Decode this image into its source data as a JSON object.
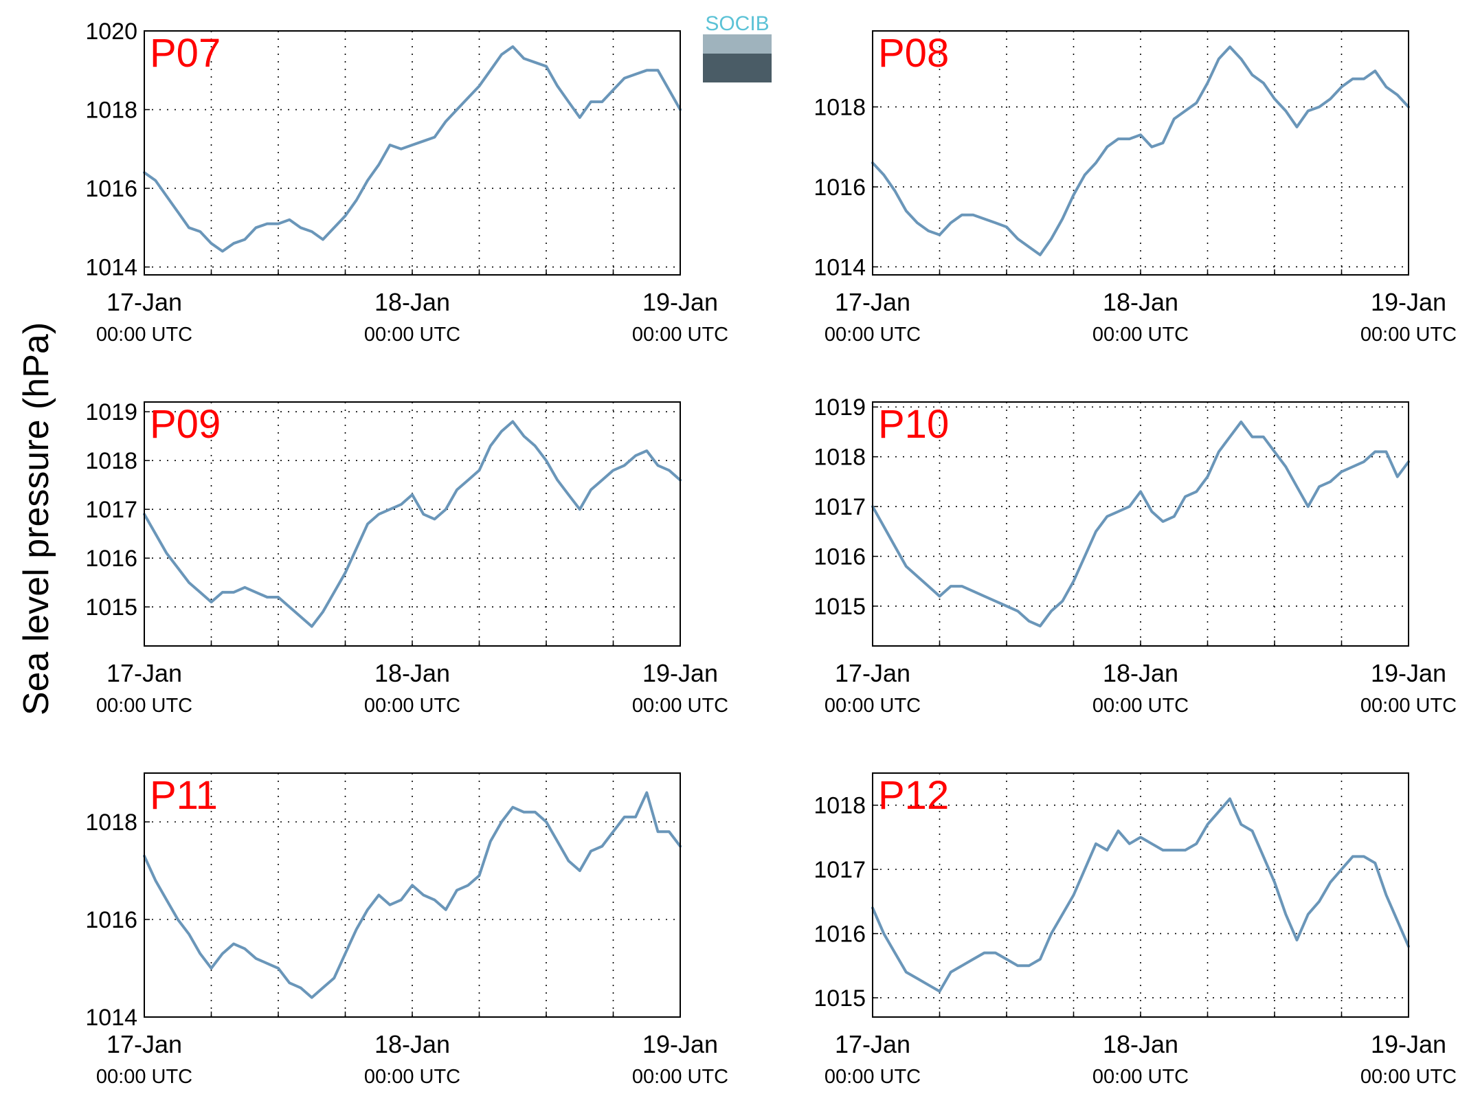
{
  "figure": {
    "ylabel": "Sea level pressure (hPa)",
    "logo_text": "SOCIB",
    "line_color": "#6a96b9",
    "label_color": "#ff0000"
  },
  "chart_data": [
    {
      "type": "line",
      "title": "P07",
      "xticks": [
        {
          "x": 0,
          "line1": "17-Jan",
          "line2": "00:00 UTC"
        },
        {
          "x": 24,
          "line1": "18-Jan",
          "line2": "00:00 UTC"
        },
        {
          "x": 48,
          "line1": "19-Jan",
          "line2": "00:00 UTC"
        }
      ],
      "xlim": [
        0,
        48
      ],
      "ylim": [
        1013.8,
        1020.0
      ],
      "yticks": [
        1014,
        1016,
        1018,
        1020
      ],
      "grid": true,
      "series": [
        {
          "x": [
            0,
            1,
            2,
            3,
            4,
            5,
            6,
            7,
            8,
            9,
            10,
            11,
            12,
            13,
            14,
            15,
            16,
            17,
            18,
            19,
            20,
            21,
            22,
            23,
            24,
            25,
            26,
            27,
            28,
            29,
            30,
            31,
            32,
            33,
            34,
            35,
            36,
            37,
            38,
            39,
            40,
            41,
            42,
            43,
            44,
            45,
            46,
            47,
            48
          ],
          "y": [
            1016.4,
            1016.2,
            1015.8,
            1015.4,
            1015.0,
            1014.9,
            1014.6,
            1014.4,
            1014.6,
            1014.7,
            1015.0,
            1015.1,
            1015.1,
            1015.2,
            1015.0,
            1014.9,
            1014.7,
            1015.0,
            1015.3,
            1015.7,
            1016.2,
            1016.6,
            1017.1,
            1017.0,
            1017.1,
            1017.2,
            1017.3,
            1017.7,
            1018.0,
            1018.3,
            1018.6,
            1019.0,
            1019.4,
            1019.6,
            1019.3,
            1019.2,
            1019.1,
            1018.6,
            1018.2,
            1017.8,
            1018.2,
            1018.2,
            1018.5,
            1018.8,
            1018.9,
            1019.0,
            1019.0,
            1018.5,
            1018.0
          ]
        }
      ]
    },
    {
      "type": "line",
      "title": "P08",
      "xticks": [
        {
          "x": 0,
          "line1": "17-Jan",
          "line2": "00:00 UTC"
        },
        {
          "x": 24,
          "line1": "18-Jan",
          "line2": "00:00 UTC"
        },
        {
          "x": 48,
          "line1": "19-Jan",
          "line2": "00:00 UTC"
        }
      ],
      "xlim": [
        0,
        48
      ],
      "ylim": [
        1013.8,
        1019.9
      ],
      "yticks": [
        1014,
        1016,
        1018
      ],
      "grid": true,
      "series": [
        {
          "x": [
            0,
            1,
            2,
            3,
            4,
            5,
            6,
            7,
            8,
            9,
            10,
            11,
            12,
            13,
            14,
            15,
            16,
            17,
            18,
            19,
            20,
            21,
            22,
            23,
            24,
            25,
            26,
            27,
            28,
            29,
            30,
            31,
            32,
            33,
            34,
            35,
            36,
            37,
            38,
            39,
            40,
            41,
            42,
            43,
            44,
            45,
            46,
            47,
            48
          ],
          "y": [
            1016.6,
            1016.3,
            1015.9,
            1015.4,
            1015.1,
            1014.9,
            1014.8,
            1015.1,
            1015.3,
            1015.3,
            1015.2,
            1015.1,
            1015.0,
            1014.7,
            1014.5,
            1014.3,
            1014.7,
            1015.2,
            1015.8,
            1016.3,
            1016.6,
            1017.0,
            1017.2,
            1017.2,
            1017.3,
            1017.0,
            1017.1,
            1017.7,
            1017.9,
            1018.1,
            1018.6,
            1019.2,
            1019.5,
            1019.2,
            1018.8,
            1018.6,
            1018.2,
            1017.9,
            1017.5,
            1017.9,
            1018.0,
            1018.2,
            1018.5,
            1018.7,
            1018.7,
            1018.9,
            1018.5,
            1018.3,
            1018.0
          ]
        }
      ]
    },
    {
      "type": "line",
      "title": "P09",
      "xticks": [
        {
          "x": 0,
          "line1": "17-Jan",
          "line2": "00:00 UTC"
        },
        {
          "x": 24,
          "line1": "18-Jan",
          "line2": "00:00 UTC"
        },
        {
          "x": 48,
          "line1": "19-Jan",
          "line2": "00:00 UTC"
        }
      ],
      "xlim": [
        0,
        48
      ],
      "ylim": [
        1014.2,
        1019.2
      ],
      "yticks": [
        1015,
        1016,
        1017,
        1018,
        1019
      ],
      "grid": true,
      "series": [
        {
          "x": [
            0,
            1,
            2,
            3,
            4,
            5,
            6,
            7,
            8,
            9,
            10,
            11,
            12,
            13,
            14,
            15,
            16,
            17,
            18,
            19,
            20,
            21,
            22,
            23,
            24,
            25,
            26,
            27,
            28,
            29,
            30,
            31,
            32,
            33,
            34,
            35,
            36,
            37,
            38,
            39,
            40,
            41,
            42,
            43,
            44,
            45,
            46,
            47,
            48
          ],
          "y": [
            1016.9,
            1016.5,
            1016.1,
            1015.8,
            1015.5,
            1015.3,
            1015.1,
            1015.3,
            1015.3,
            1015.4,
            1015.3,
            1015.2,
            1015.2,
            1015.0,
            1014.8,
            1014.6,
            1014.9,
            1015.3,
            1015.7,
            1016.2,
            1016.7,
            1016.9,
            1017.0,
            1017.1,
            1017.3,
            1016.9,
            1016.8,
            1017.0,
            1017.4,
            1017.6,
            1017.8,
            1018.3,
            1018.6,
            1018.8,
            1018.5,
            1018.3,
            1018.0,
            1017.6,
            1017.3,
            1017.0,
            1017.4,
            1017.6,
            1017.8,
            1017.9,
            1018.1,
            1018.2,
            1017.9,
            1017.8,
            1017.6
          ]
        }
      ]
    },
    {
      "type": "line",
      "title": "P10",
      "xticks": [
        {
          "x": 0,
          "line1": "17-Jan",
          "line2": "00:00 UTC"
        },
        {
          "x": 24,
          "line1": "18-Jan",
          "line2": "00:00 UTC"
        },
        {
          "x": 48,
          "line1": "19-Jan",
          "line2": "00:00 UTC"
        }
      ],
      "xlim": [
        0,
        48
      ],
      "ylim": [
        1014.2,
        1019.1
      ],
      "yticks": [
        1015,
        1016,
        1017,
        1018,
        1019
      ],
      "grid": true,
      "series": [
        {
          "x": [
            0,
            1,
            2,
            3,
            4,
            5,
            6,
            7,
            8,
            9,
            10,
            11,
            12,
            13,
            14,
            15,
            16,
            17,
            18,
            19,
            20,
            21,
            22,
            23,
            24,
            25,
            26,
            27,
            28,
            29,
            30,
            31,
            32,
            33,
            34,
            35,
            36,
            37,
            38,
            39,
            40,
            41,
            42,
            43,
            44,
            45,
            46,
            47,
            48
          ],
          "y": [
            1017.0,
            1016.6,
            1016.2,
            1015.8,
            1015.6,
            1015.4,
            1015.2,
            1015.4,
            1015.4,
            1015.3,
            1015.2,
            1015.1,
            1015.0,
            1014.9,
            1014.7,
            1014.6,
            1014.9,
            1015.1,
            1015.5,
            1016.0,
            1016.5,
            1016.8,
            1016.9,
            1017.0,
            1017.3,
            1016.9,
            1016.7,
            1016.8,
            1017.2,
            1017.3,
            1017.6,
            1018.1,
            1018.4,
            1018.7,
            1018.4,
            1018.4,
            1018.1,
            1017.8,
            1017.4,
            1017.0,
            1017.4,
            1017.5,
            1017.7,
            1017.8,
            1017.9,
            1018.1,
            1018.1,
            1017.6,
            1017.9
          ]
        }
      ]
    },
    {
      "type": "line",
      "title": "P11",
      "xticks": [
        {
          "x": 0,
          "line1": "17-Jan",
          "line2": "00:00 UTC"
        },
        {
          "x": 24,
          "line1": "18-Jan",
          "line2": "00:00 UTC"
        },
        {
          "x": 48,
          "line1": "19-Jan",
          "line2": "00:00 UTC"
        }
      ],
      "xlim": [
        0,
        48
      ],
      "ylim": [
        1014.0,
        1019.0
      ],
      "yticks": [
        1014,
        1016,
        1018
      ],
      "grid": true,
      "series": [
        {
          "x": [
            0,
            1,
            2,
            3,
            4,
            5,
            6,
            7,
            8,
            9,
            10,
            11,
            12,
            13,
            14,
            15,
            16,
            17,
            18,
            19,
            20,
            21,
            22,
            23,
            24,
            25,
            26,
            27,
            28,
            29,
            30,
            31,
            32,
            33,
            34,
            35,
            36,
            37,
            38,
            39,
            40,
            41,
            42,
            43,
            44,
            45,
            46,
            47,
            48
          ],
          "y": [
            1017.3,
            1016.8,
            1016.4,
            1016.0,
            1015.7,
            1015.3,
            1015.0,
            1015.3,
            1015.5,
            1015.4,
            1015.2,
            1015.1,
            1015.0,
            1014.7,
            1014.6,
            1014.4,
            1014.6,
            1014.8,
            1015.3,
            1015.8,
            1016.2,
            1016.5,
            1016.3,
            1016.4,
            1016.7,
            1016.5,
            1016.4,
            1016.2,
            1016.6,
            1016.7,
            1016.9,
            1017.6,
            1018.0,
            1018.3,
            1018.2,
            1018.2,
            1018.0,
            1017.6,
            1017.2,
            1017.0,
            1017.4,
            1017.5,
            1017.8,
            1018.1,
            1018.1,
            1018.6,
            1017.8,
            1017.8,
            1017.5
          ]
        }
      ]
    },
    {
      "type": "line",
      "title": "P12",
      "xticks": [
        {
          "x": 0,
          "line1": "17-Jan",
          "line2": "00:00 UTC"
        },
        {
          "x": 24,
          "line1": "18-Jan",
          "line2": "00:00 UTC"
        },
        {
          "x": 48,
          "line1": "19-Jan",
          "line2": "00:00 UTC"
        }
      ],
      "xlim": [
        0,
        48
      ],
      "ylim": [
        1014.7,
        1018.5
      ],
      "yticks": [
        1015,
        1016,
        1017,
        1018
      ],
      "grid": true,
      "series": [
        {
          "x": [
            0,
            1,
            2,
            3,
            4,
            5,
            6,
            7,
            8,
            9,
            10,
            11,
            12,
            13,
            14,
            15,
            16,
            17,
            18,
            19,
            20,
            21,
            22,
            23,
            24,
            25,
            26,
            27,
            28,
            29,
            30,
            31,
            32,
            33,
            34,
            35,
            36,
            37,
            38,
            39,
            40,
            41,
            42,
            43,
            44,
            45,
            46,
            47,
            48
          ],
          "y": [
            1016.4,
            1016.0,
            1015.7,
            1015.4,
            1015.3,
            1015.2,
            1015.1,
            1015.4,
            1015.5,
            1015.6,
            1015.7,
            1015.7,
            1015.6,
            1015.5,
            1015.5,
            1015.6,
            1016.0,
            1016.3,
            1016.6,
            1017.0,
            1017.4,
            1017.3,
            1017.6,
            1017.4,
            1017.5,
            1017.4,
            1017.3,
            1017.3,
            1017.3,
            1017.4,
            1017.7,
            1017.9,
            1018.1,
            1017.7,
            1017.6,
            1017.2,
            1016.8,
            1016.3,
            1015.9,
            1016.3,
            1016.5,
            1016.8,
            1017.0,
            1017.2,
            1017.2,
            1017.1,
            1016.6,
            1016.2,
            1015.8
          ]
        }
      ]
    }
  ]
}
